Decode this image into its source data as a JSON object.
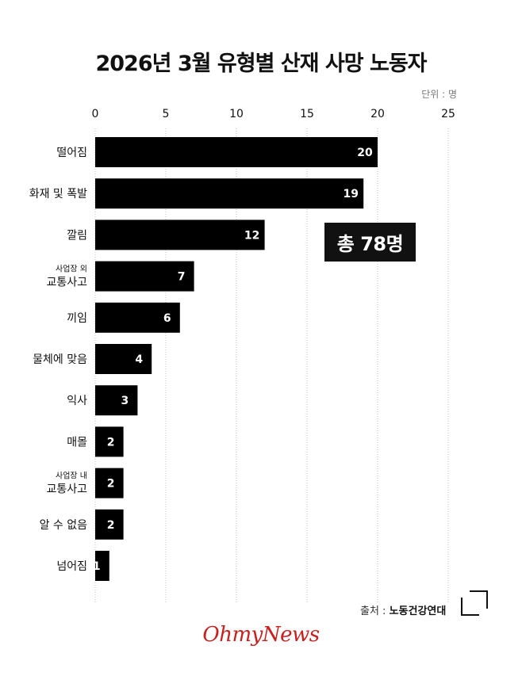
{
  "title": "2026년 3월 유형별 산재 사망 노동자",
  "unit_label": "단위 : 명",
  "total_label": "총 78명",
  "source": {
    "label": "출처 :",
    "name": "노동건강연대"
  },
  "brand": "OhmyNews",
  "colors": {
    "bar": "#000000",
    "bar_label": "#ffffff",
    "grid": "#bfbfbf",
    "brand": "#c8201e"
  },
  "chart_data": {
    "type": "bar",
    "orientation": "horizontal",
    "title": "2026년 3월 유형별 산재 사망 노동자",
    "categories": [
      [
        "떨어짐"
      ],
      [
        "화재 및 폭발"
      ],
      [
        "깔림"
      ],
      [
        "사업장 외",
        "교통사고"
      ],
      [
        "끼임"
      ],
      [
        "물체에 맞음"
      ],
      [
        "익사"
      ],
      [
        "매몰"
      ],
      [
        "사업장 내",
        "교통사고"
      ],
      [
        "알 수 없음"
      ],
      [
        "넘어짐"
      ]
    ],
    "values": [
      20,
      19,
      12,
      7,
      6,
      4,
      3,
      2,
      2,
      2,
      1
    ],
    "xlim": [
      0,
      25
    ],
    "xticks": [
      0,
      5,
      10,
      15,
      20,
      25
    ],
    "grid": "vertical dotted",
    "legend": "none"
  }
}
